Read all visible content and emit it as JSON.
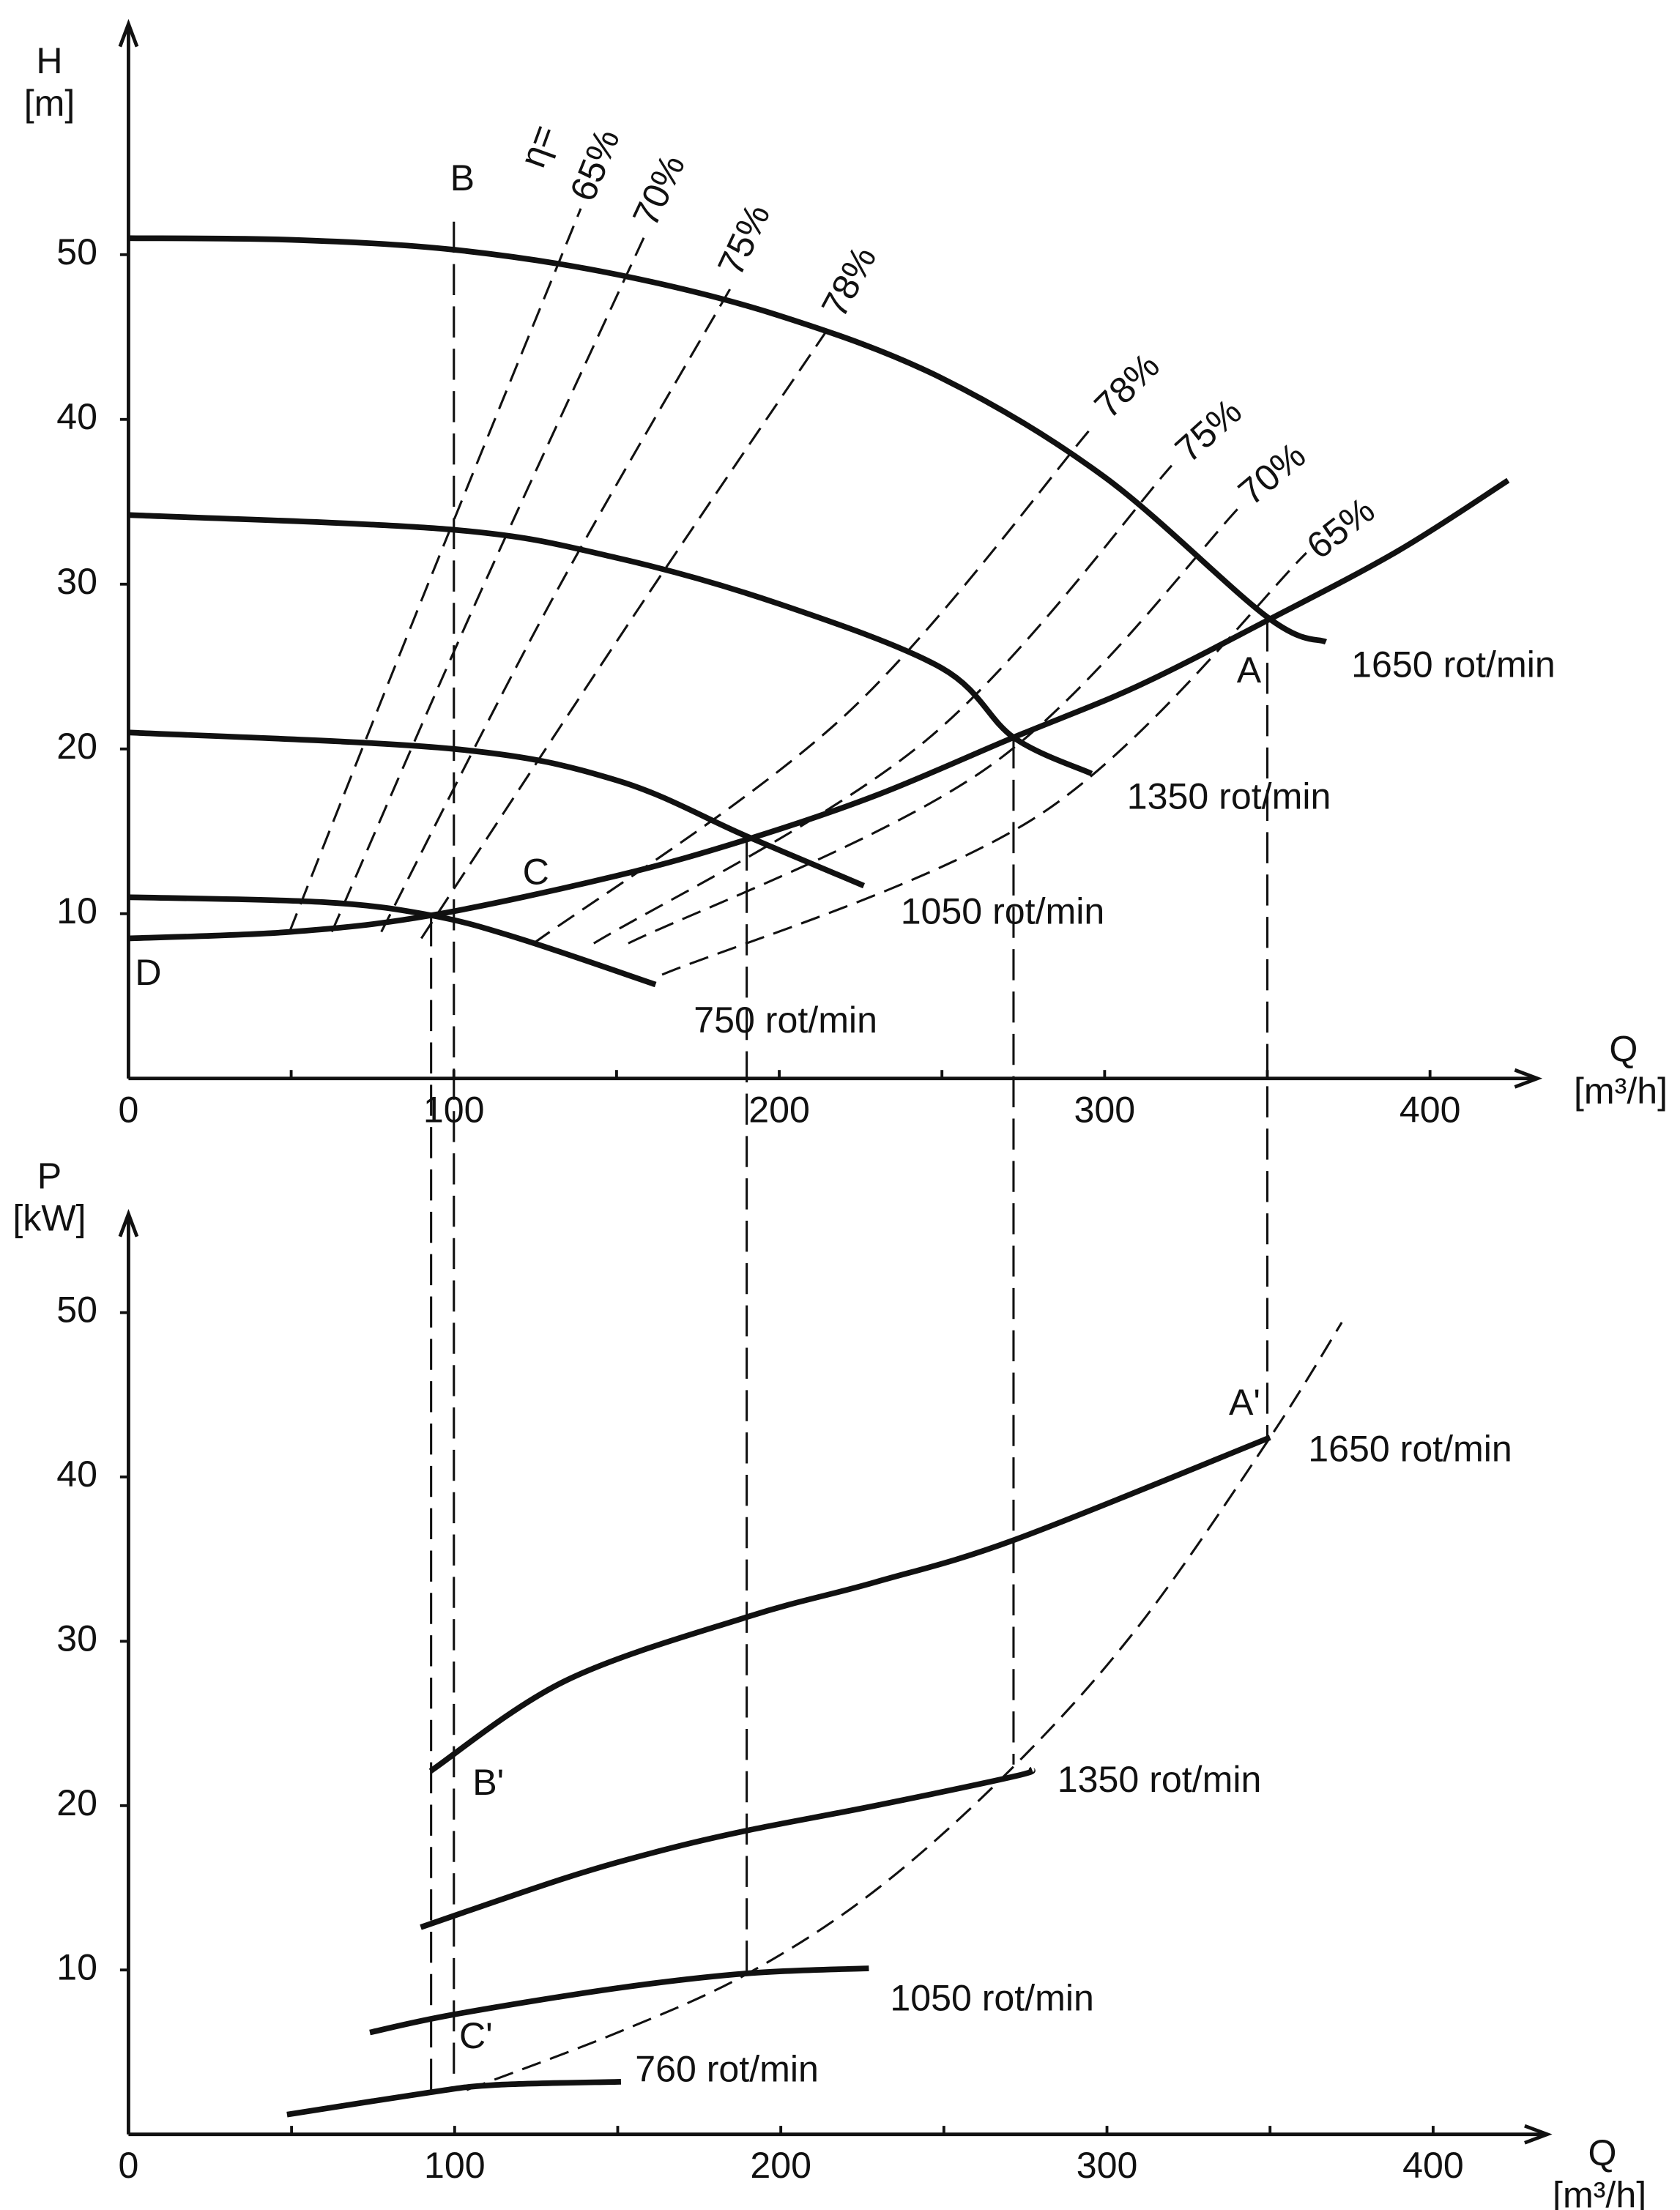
{
  "chart_data": [
    {
      "type": "line",
      "y_label": "H",
      "y_unit": "[m]",
      "x_label": "Q",
      "x_unit": "[m³/h]",
      "xlim": [
        0,
        433
      ],
      "ylim": [
        0,
        64
      ],
      "xticks": [
        0,
        100,
        200,
        300,
        400
      ],
      "xminor": [
        50,
        150,
        250,
        350
      ],
      "yticks": [
        10,
        20,
        30,
        40,
        50
      ],
      "annotations": [
        {
          "text": "η="
        }
      ],
      "series": [
        {
          "name": "1650 rot/min",
          "style": "solid",
          "x": [
            0,
            50,
            100,
            150,
            200,
            250,
            300,
            350,
            368
          ],
          "values": [
            51,
            50.9,
            50.3,
            48.8,
            46.3,
            42.5,
            36.5,
            28,
            26.5
          ]
        },
        {
          "name": "1350 rot/min",
          "style": "solid",
          "x": [
            0,
            100,
            150,
            200,
            250,
            272,
            296
          ],
          "values": [
            34.2,
            33.3,
            31.6,
            28.8,
            24.9,
            20.7,
            18.5
          ]
        },
        {
          "name": "1050 rot/min",
          "style": "solid",
          "x": [
            0,
            100,
            150,
            190,
            226
          ],
          "values": [
            21,
            20,
            18.1,
            14.7,
            11.7
          ]
        },
        {
          "name": "750 rot/min",
          "style": "solid",
          "x": [
            0,
            60,
            93,
            120,
            162
          ],
          "values": [
            11,
            10.7,
            9.9,
            8.5,
            5.7
          ]
        },
        {
          "style": "solid",
          "x": [
            0,
            50,
            93,
            150,
            190,
            230,
            272,
            310,
            350,
            390,
            424
          ],
          "values": [
            8.5,
            8.9,
            9.9,
            12.3,
            14.5,
            17.2,
            20.7,
            23.8,
            27.8,
            32,
            36.3
          ]
        },
        {
          "name": "65%",
          "style": "dashed",
          "x": [
            49.5,
            90,
            139
          ],
          "values": [
            8.9,
            29,
            52.8
          ]
        },
        {
          "name": "70%",
          "style": "dashed",
          "x": [
            62.5,
            107,
            159
          ],
          "values": [
            8.9,
            29,
            51.3
          ]
        },
        {
          "name": "75%",
          "style": "dashed",
          "x": [
            77.7,
            130,
            186
          ],
          "values": [
            8.9,
            29,
            48.3
          ]
        },
        {
          "name": "78%",
          "style": "dashed",
          "x": [
            90,
            155,
            216
          ],
          "values": [
            8.5,
            28,
            45.8
          ]
        },
        {
          "name": "78%",
          "style": "dashed",
          "x": [
            124.5,
            220,
            296
          ],
          "values": [
            8.2,
            22,
            39.5
          ]
        },
        {
          "name": "75%",
          "style": "dashed",
          "x": [
            143,
            245,
            320.6
          ],
          "values": [
            8.2,
            20.5,
            37.2
          ]
        },
        {
          "name": "70%",
          "style": "dashed",
          "x": [
            153.6,
            265,
            342
          ],
          "values": [
            8.2,
            19,
            34.8
          ]
        },
        {
          "name": "65%",
          "style": "dashed",
          "x": [
            164,
            280,
            362
          ],
          "values": [
            6.3,
            16,
            31.9
          ]
        }
      ],
      "points": [
        {
          "label": "A",
          "x": 350,
          "y": 27.8
        },
        {
          "label": "B",
          "x": 100,
          "y": 52
        },
        {
          "label": "C",
          "x": 97,
          "y": 9.8
        },
        {
          "label": "D",
          "x": 0,
          "y": 8.5
        }
      ]
    },
    {
      "type": "line",
      "y_label": "P",
      "y_unit": "[kW]",
      "x_label": "Q",
      "x_unit": "[m³/h]",
      "xlim": [
        0,
        435
      ],
      "ylim": [
        0,
        56
      ],
      "xticks": [
        0,
        100,
        200,
        300,
        400
      ],
      "xminor": [
        50,
        150,
        250,
        350
      ],
      "yticks": [
        10,
        20,
        30,
        40,
        50
      ],
      "series": [
        {
          "name": "1650 rot/min",
          "style": "solid",
          "x": [
            92.6,
            134,
            190,
            229,
            272,
            350
          ],
          "values": [
            22.1,
            27.6,
            31.5,
            33.6,
            36.2,
            42.4
          ]
        },
        {
          "name": "1350 rot/min",
          "style": "solid",
          "x": [
            89.6,
            134,
            164,
            190,
            229,
            272,
            277
          ],
          "values": [
            12.6,
            15.6,
            17.3,
            18.5,
            20,
            21.8,
            22.2
          ]
        },
        {
          "name": "1050 rot/min",
          "style": "solid",
          "x": [
            74,
            100,
            150,
            190,
            227
          ],
          "values": [
            6.2,
            7.3,
            8.9,
            9.8,
            10.1
          ]
        },
        {
          "name": "760 rot/min",
          "style": "solid",
          "x": [
            48.6,
            90.7,
            112,
            151
          ],
          "values": [
            1.2,
            2.5,
            3,
            3.2
          ]
        },
        {
          "style": "dashed",
          "x": [
            103.7,
            150,
            190,
            230,
            272,
            310,
            350,
            372
          ],
          "values": [
            2.7,
            6.2,
            9.8,
            15,
            22.5,
            31,
            42.4,
            49.4
          ]
        }
      ],
      "points": [
        {
          "label": "A'",
          "x": 350,
          "y": 42.4
        },
        {
          "label": "B'",
          "x": 93,
          "y": 22.1
        },
        {
          "label": "C'",
          "x": 97,
          "y": 3
        }
      ]
    }
  ],
  "guides": [
    {
      "q": 93,
      "h": 9.9,
      "p": 2.1
    },
    {
      "q": 100,
      "h": 52,
      "p": 3
    },
    {
      "q": 190,
      "h": 14.5,
      "p": 9.6
    },
    {
      "q": 272,
      "h": 20.7,
      "p": 22.5
    },
    {
      "q": 350,
      "h": 27.8,
      "p": 42.4
    }
  ]
}
